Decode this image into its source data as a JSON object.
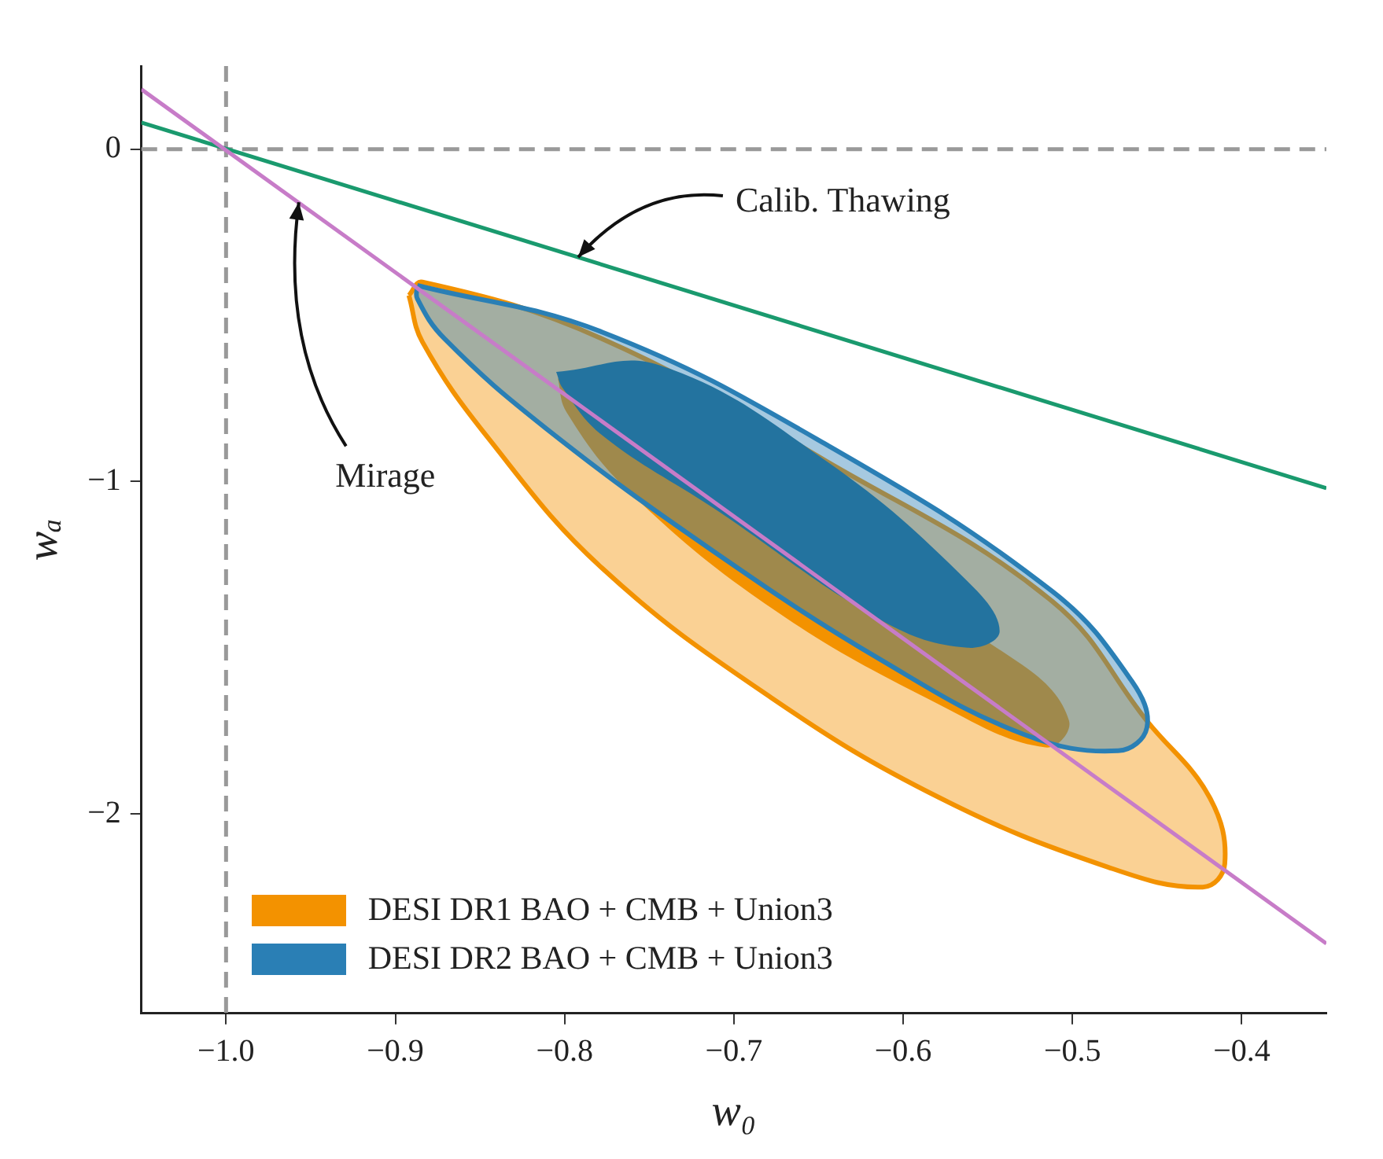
{
  "chart_data": {
    "type": "area",
    "xlabel": "w₀",
    "ylabel": "wₐ",
    "xlim": [
      -1.05,
      -0.35
    ],
    "ylim": [
      -2.6,
      0.25
    ],
    "xticks": [
      {
        "value": -1.0,
        "label": "−1.0"
      },
      {
        "value": -0.9,
        "label": "−0.9"
      },
      {
        "value": -0.8,
        "label": "−0.8"
      },
      {
        "value": -0.7,
        "label": "−0.7"
      },
      {
        "value": -0.6,
        "label": "−0.6"
      },
      {
        "value": -0.5,
        "label": "−0.5"
      },
      {
        "value": -0.4,
        "label": "−0.4"
      }
    ],
    "yticks": [
      {
        "value": -2,
        "label": "−2"
      },
      {
        "value": -1,
        "label": "−1"
      },
      0
    ],
    "legend": "bottom left",
    "series": [
      {
        "name": "DESI DR1 BAO + CMB + Union3",
        "color": "#f39200",
        "x": [
          -0.892,
          -0.884,
          -0.778,
          -0.645,
          -0.512,
          -0.456,
          -0.419,
          -0.41,
          -0.423,
          -0.479,
          -0.579,
          -0.678,
          -0.778,
          -0.845,
          -0.884
        ],
        "values": [
          -0.44,
          -0.4,
          -0.57,
          -0.94,
          -1.36,
          -1.72,
          -1.95,
          -2.15,
          -2.22,
          -2.16,
          -1.95,
          -1.65,
          -1.26,
          -0.87,
          -0.58
        ]
      },
      {
        "color": "#f39200",
        "x": [
          -0.804,
          -0.715,
          -0.613,
          -0.53,
          -0.502,
          -0.516,
          -0.579,
          -0.678,
          -0.762,
          -0.799
        ],
        "values": [
          -0.69,
          null,
          null,
          -1.55,
          -1.72,
          -1.8,
          -1.67,
          -1.38,
          -1.03,
          -0.79
        ]
      },
      {
        "name": "DESI DR2 BAO + CMB + Union3",
        "color": "#2a7fb5",
        "x": [
          -0.887,
          -0.778,
          -0.645,
          -0.512,
          -0.465,
          -0.456,
          -0.473,
          -0.529,
          -0.612,
          -0.712,
          -0.811,
          -0.871,
          -0.887
        ],
        "values": [
          -0.41,
          -0.55,
          -0.89,
          -1.33,
          -1.6,
          -1.74,
          -1.81,
          -1.76,
          -1.54,
          -1.21,
          -0.84,
          -0.57,
          -0.45
        ]
      },
      {
        "color": "#23739f",
        "x": [
          -0.805,
          -0.744,
          -0.645,
          -0.562,
          -0.543,
          -0.562,
          -0.612,
          -0.712,
          -0.778,
          -0.801
        ],
        "values": [
          -0.67,
          -0.65,
          -0.94,
          -1.3,
          -1.45,
          -1.5,
          -1.42,
          -1.08,
          -0.86,
          -0.72
        ]
      },
      {
        "type": "line",
        "color": "#1a9a6e",
        "x": [
          -1.05,
          -0.35
        ],
        "values": [
          0.08,
          -1.02
        ]
      },
      {
        "type": "line",
        "color": "#c77cc8",
        "x": [
          -1.05,
          -0.35
        ],
        "values": [
          0.18,
          -2.39
        ]
      }
    ],
    "ref_lines": [
      {
        "axis": "x",
        "value": -1.0,
        "color": "#999999",
        "line_style": "dashed"
      },
      {
        "axis": "y",
        "value": 0,
        "color": "#999999",
        "line_style": "dashed"
      }
    ],
    "annotations": [
      {
        "text": "Calib. Thawing",
        "x": -0.792,
        "y": -0.325
      },
      {
        "text": "Mirage",
        "x": -0.957,
        "y": -0.16
      }
    ]
  }
}
